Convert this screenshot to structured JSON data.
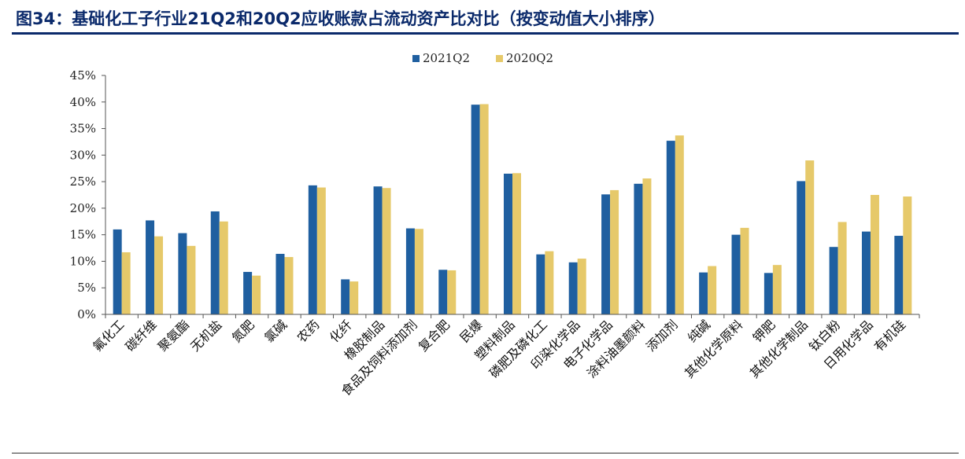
{
  "figure": {
    "title": "图34：基础化工子行业21Q2和20Q2应收账款占流动资产比对比（按变动值大小排序）"
  },
  "chart_data": {
    "type": "bar",
    "title": "",
    "xlabel": "",
    "ylabel": "",
    "ylim": [
      0,
      45
    ],
    "yticks": [
      "0%",
      "5%",
      "10%",
      "15%",
      "20%",
      "25%",
      "30%",
      "35%",
      "40%",
      "45%"
    ],
    "legend_position": "top-center",
    "grid": false,
    "categories": [
      "氟化工",
      "碳纤维",
      "聚氨酯",
      "无机盐",
      "氮肥",
      "氯碱",
      "农药",
      "化纤",
      "橡胶制品",
      "食品及饲料添加剂",
      "复合肥",
      "民爆",
      "塑料制品",
      "磷肥及磷化工",
      "印染化学品",
      "电子化学品",
      "涂料油墨颜料",
      "添加剂",
      "纯碱",
      "其他化学原料",
      "钾肥",
      "其他化学制品",
      "钛白粉",
      "日用化学品",
      "有机硅"
    ],
    "series": [
      {
        "name": "2021Q2",
        "color": "#1f5fa0",
        "values": [
          16.0,
          17.7,
          15.3,
          19.4,
          8.0,
          11.4,
          24.3,
          6.6,
          24.1,
          16.2,
          8.4,
          39.5,
          26.5,
          11.3,
          9.8,
          22.6,
          24.6,
          32.7,
          7.9,
          15.0,
          7.8,
          25.1,
          12.7,
          15.6,
          14.8
        ]
      },
      {
        "name": "2020Q2",
        "color": "#e6c96a",
        "values": [
          11.7,
          14.7,
          12.9,
          17.5,
          7.3,
          10.8,
          23.9,
          6.2,
          23.8,
          16.1,
          8.3,
          39.6,
          26.6,
          11.9,
          10.5,
          23.4,
          25.6,
          33.7,
          9.1,
          16.3,
          9.3,
          29.0,
          17.4,
          22.5,
          22.2
        ]
      }
    ]
  }
}
